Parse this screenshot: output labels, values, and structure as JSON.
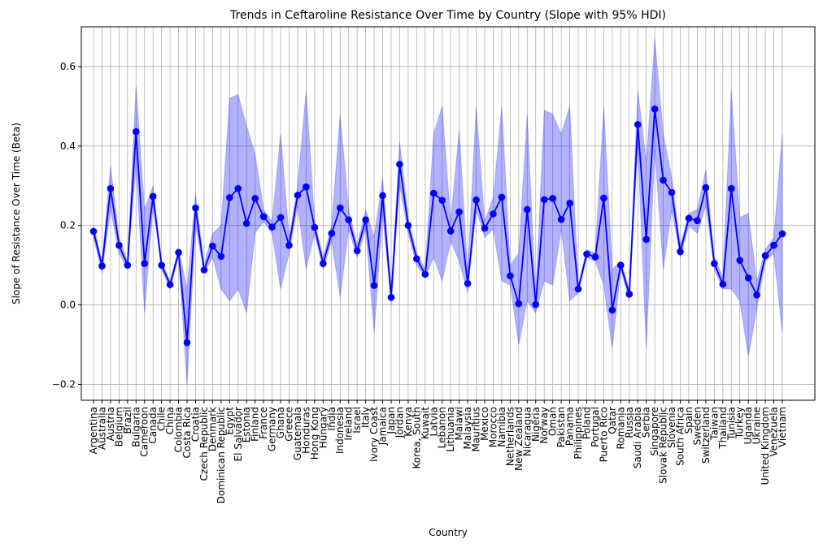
{
  "chart_data": {
    "type": "line",
    "title": "Trends in Ceftaroline Resistance Over Time by Country (Slope with 95% HDI)",
    "xlabel": "Country",
    "ylabel": "Slope of Resistance Over Time (Beta)",
    "ylim": [
      -0.24,
      0.7
    ],
    "yticks": [
      -0.2,
      0.0,
      0.2,
      0.4,
      0.6
    ],
    "ytick_labels": [
      "−0.2",
      "0.0",
      "0.2",
      "0.4",
      "0.6"
    ],
    "grid": true,
    "line_color": "#0000ff",
    "band_color": "#0000ff",
    "categories": [
      "Argentina",
      "Australia",
      "Austria",
      "Belgium",
      "Brazil",
      "Bulgaria",
      "Cameroon",
      "Canada",
      "Chile",
      "China",
      "Colombia",
      "Costa Rica",
      "Croatia",
      "Czech Republic",
      "Denmark",
      "Dominican Republic",
      "Egypt",
      "El Salvador",
      "Estonia",
      "Finland",
      "France",
      "Germany",
      "Ghana",
      "Greece",
      "Guatemala",
      "Honduras",
      "Hong Kong",
      "Hungary",
      "India",
      "Indonesia",
      "Ireland",
      "Israel",
      "Italy",
      "Ivory Coast",
      "Jamaica",
      "Japan",
      "Jordan",
      "Kenya",
      "Korea, South",
      "Kuwait",
      "Latvia",
      "Lebanon",
      "Lithuania",
      "Malawi",
      "Malaysia",
      "Mauritius",
      "Mexico",
      "Morocco",
      "Namibia",
      "Netherlands",
      "New Zealand",
      "Nicaragua",
      "Nigeria",
      "Norway",
      "Oman",
      "Pakistan",
      "Panama",
      "Philippines",
      "Poland",
      "Portugal",
      "Puerto Rico",
      "Qatar",
      "Romania",
      "Russia",
      "Saudi Arabia",
      "Serbia",
      "Singapore",
      "Slovak Republic",
      "Slovenia",
      "South Africa",
      "Spain",
      "Sweden",
      "Switzerland",
      "Taiwan",
      "Thailand",
      "Tunisia",
      "Turkey",
      "Uganda",
      "Ukraine",
      "United Kingdom",
      "Venezuela",
      "Vietnam"
    ],
    "series": [
      {
        "values": [
          0.185,
          0.098,
          0.293,
          0.15,
          0.1,
          0.436,
          0.104,
          0.273,
          0.1,
          0.051,
          0.132,
          -0.095,
          0.244,
          0.088,
          0.148,
          0.122,
          0.27,
          0.293,
          0.205,
          0.268,
          0.222,
          0.196,
          0.22,
          0.15,
          0.276,
          0.297,
          0.195,
          0.104,
          0.18,
          0.244,
          0.214,
          0.136,
          0.214,
          0.049,
          0.275,
          0.019,
          0.354,
          0.2,
          0.116,
          0.077,
          0.281,
          0.263,
          0.186,
          0.234,
          0.054,
          0.264,
          0.193,
          0.229,
          0.271,
          0.073,
          0.003,
          0.24,
          0.001,
          0.265,
          0.268,
          0.215,
          0.256,
          0.04,
          0.128,
          0.121,
          0.269,
          -0.013,
          0.1,
          0.027,
          0.454,
          0.165,
          0.493,
          0.314,
          0.283,
          0.134,
          0.218,
          0.212,
          0.295,
          0.104,
          0.052,
          0.293,
          0.112,
          0.068,
          0.025,
          0.124,
          0.15,
          0.179
        ],
        "hdi_lower": [
          0.17,
          0.08,
          0.24,
          0.13,
          0.09,
          0.35,
          -0.02,
          0.25,
          0.09,
          0.04,
          0.12,
          -0.2,
          0.2,
          0.08,
          0.12,
          0.04,
          0.01,
          0.04,
          -0.02,
          0.18,
          0.21,
          0.18,
          0.04,
          0.13,
          0.25,
          0.09,
          0.18,
          0.09,
          0.16,
          0.02,
          0.19,
          0.12,
          0.19,
          -0.07,
          0.23,
          0.0,
          0.3,
          0.18,
          0.1,
          0.07,
          0.12,
          0.06,
          0.16,
          0.11,
          0.03,
          0.24,
          0.17,
          0.19,
          0.06,
          0.05,
          -0.1,
          0.01,
          -0.02,
          0.06,
          0.05,
          0.19,
          0.01,
          0.03,
          0.12,
          0.11,
          0.05,
          -0.11,
          0.09,
          0.01,
          0.4,
          -0.11,
          0.39,
          0.09,
          0.24,
          0.12,
          0.2,
          0.18,
          0.25,
          0.09,
          0.04,
          0.04,
          0.01,
          -0.13,
          -0.01,
          0.11,
          0.13,
          -0.07
        ],
        "hdi_upper": [
          0.2,
          0.11,
          0.35,
          0.17,
          0.11,
          0.55,
          0.24,
          0.3,
          0.11,
          0.06,
          0.14,
          0.04,
          0.28,
          0.1,
          0.18,
          0.2,
          0.52,
          0.53,
          0.45,
          0.38,
          0.24,
          0.21,
          0.43,
          0.17,
          0.3,
          0.54,
          0.21,
          0.12,
          0.2,
          0.48,
          0.24,
          0.15,
          0.24,
          0.17,
          0.32,
          0.04,
          0.41,
          0.22,
          0.13,
          0.09,
          0.43,
          0.5,
          0.21,
          0.44,
          0.08,
          0.5,
          0.21,
          0.27,
          0.5,
          0.1,
          0.13,
          0.48,
          0.02,
          0.49,
          0.48,
          0.43,
          0.5,
          0.05,
          0.14,
          0.13,
          0.5,
          0.09,
          0.11,
          0.04,
          0.54,
          0.36,
          0.67,
          0.43,
          0.32,
          0.15,
          0.23,
          0.24,
          0.34,
          0.12,
          0.07,
          0.54,
          0.22,
          0.23,
          0.06,
          0.14,
          0.17,
          0.43
        ]
      }
    ]
  }
}
